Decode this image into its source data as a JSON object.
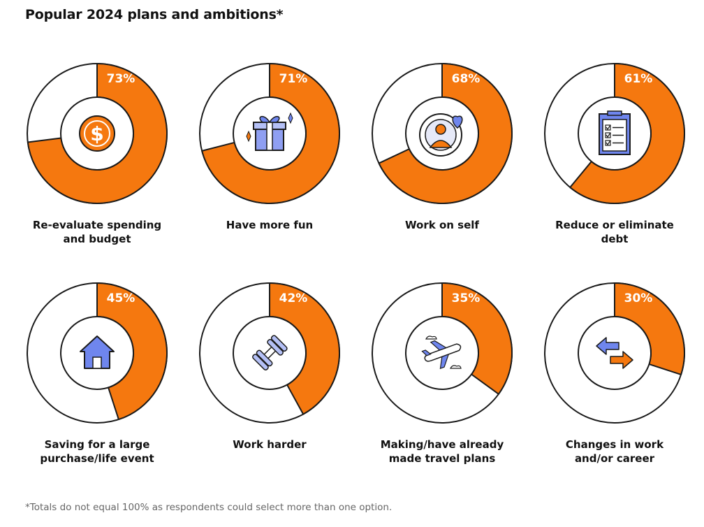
{
  "title": "Popular 2024 plans and ambitions*",
  "footnote": "*Totals do not equal 100% as respondents could select more than one option.",
  "colors": {
    "fill": "#f5780f",
    "empty": "#ffffff",
    "stroke": "#1a1a1a",
    "icon_blue": "#6f86ee",
    "icon_orange": "#f5780f"
  },
  "chart_data": {
    "type": "pie",
    "title": "Popular 2024 plans and ambitions*",
    "unit": "%",
    "categories": [
      "Re-evaluate spending and budget",
      "Have more fun",
      "Work on self",
      "Reduce or eliminate debt",
      "Saving for a large purchase/life event",
      "Work harder",
      "Making/have already made travel plans",
      "Changes in work and/or career"
    ],
    "values": [
      73,
      71,
      68,
      61,
      45,
      42,
      35,
      30
    ],
    "items": [
      {
        "value": 73,
        "value_label": "73%",
        "line1": "Re-evaluate spending",
        "line2": "and budget",
        "icon": "dollar-coin-icon"
      },
      {
        "value": 71,
        "value_label": "71%",
        "line1": "Have more fun",
        "line2": "",
        "icon": "gift-icon"
      },
      {
        "value": 68,
        "value_label": "68%",
        "line1": "Work on self",
        "line2": "",
        "icon": "person-heart-icon"
      },
      {
        "value": 61,
        "value_label": "61%",
        "line1": "Reduce or eliminate",
        "line2": "debt",
        "icon": "checklist-icon"
      },
      {
        "value": 45,
        "value_label": "45%",
        "line1": "Saving for a large",
        "line2": "purchase/life event",
        "icon": "house-icon"
      },
      {
        "value": 42,
        "value_label": "42%",
        "line1": "Work harder",
        "line2": "",
        "icon": "dumbbell-icon"
      },
      {
        "value": 35,
        "value_label": "35%",
        "line1": "Making/have already",
        "line2": "made travel plans",
        "icon": "airplane-icon"
      },
      {
        "value": 30,
        "value_label": "30%",
        "line1": "Changes in work",
        "line2": "and/or career",
        "icon": "arrows-icon"
      }
    ]
  }
}
